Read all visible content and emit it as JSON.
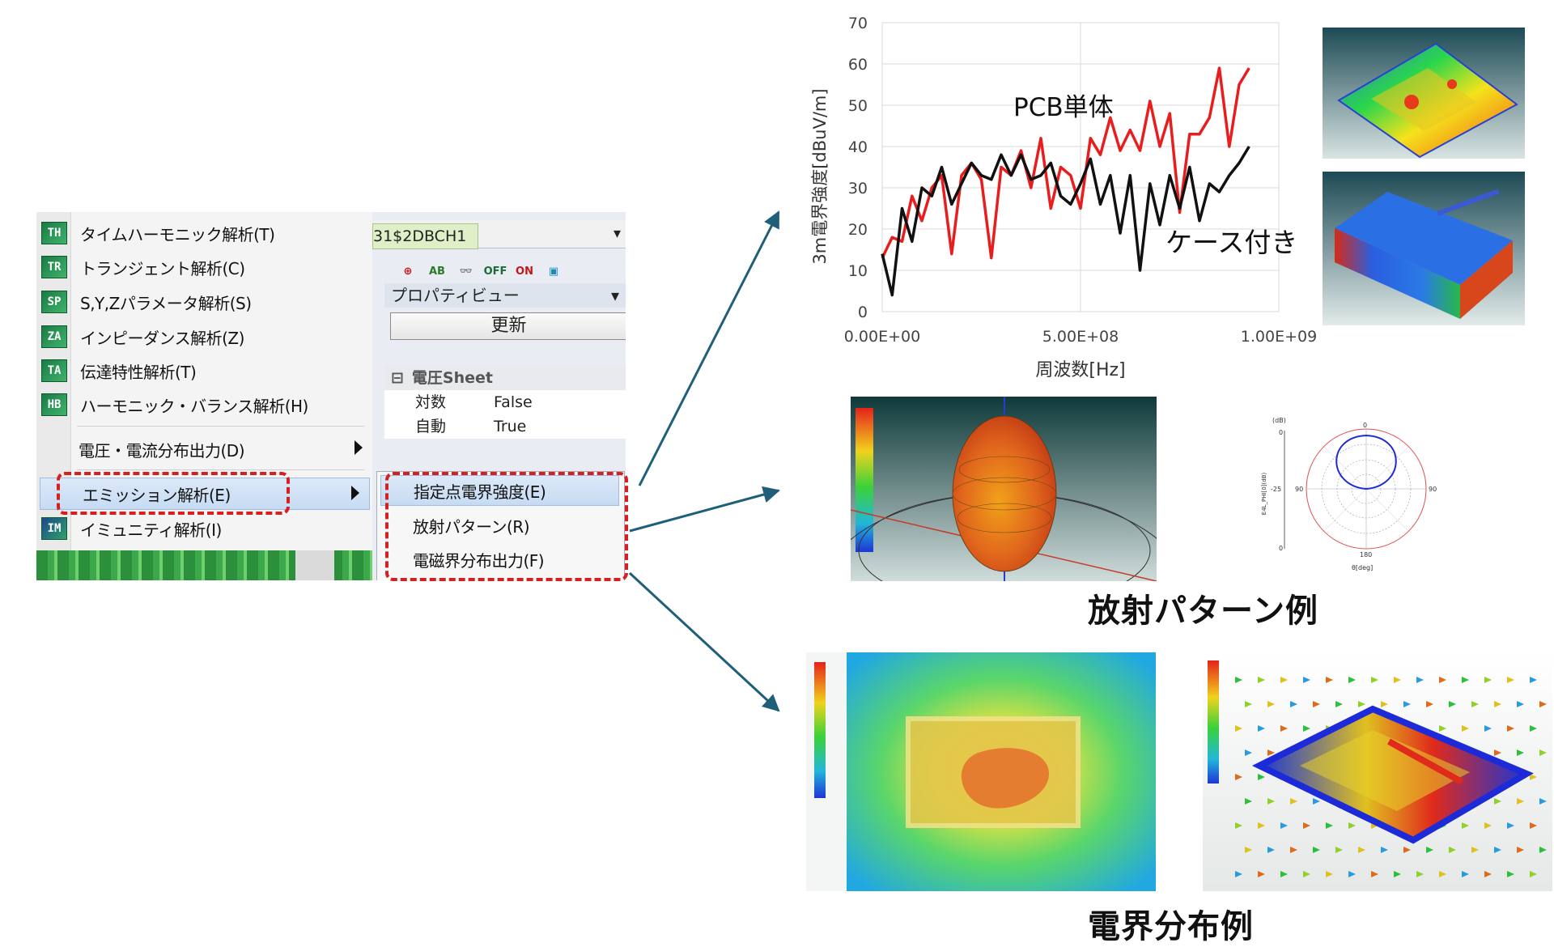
{
  "menu": {
    "items": [
      {
        "icon": "TH",
        "label": "タイムハーモニック解析(T)"
      },
      {
        "icon": "TR",
        "label": "トランジェント解析(C)"
      },
      {
        "icon": "SP",
        "label": "S,Y,Zパラメータ解析(S)"
      },
      {
        "icon": "ZA",
        "label": "インピーダンス解析(Z)"
      },
      {
        "icon": "TA",
        "label": "伝達特性解析(T)"
      },
      {
        "icon": "HB",
        "label": "ハーモニック・バランス解析(H)"
      },
      {
        "icon": "",
        "label": "電圧・電流分布出力(D)"
      },
      {
        "icon": "",
        "label": "エミッション解析(E)"
      },
      {
        "icon": "IM",
        "label": "イミュニティ解析(I)"
      }
    ],
    "submenu": [
      "指定点電界強度(E)",
      "放射パターン(R)",
      "電磁界分布出力(F)"
    ]
  },
  "right_pane": {
    "tab_label": "31$2DBCH1",
    "toolbar": [
      "OFF",
      "ON"
    ],
    "property_view": "プロパティビュー",
    "update_button": "更新",
    "category": "電圧Sheet",
    "properties": [
      {
        "key": "対数",
        "value": "False"
      },
      {
        "key": "自動",
        "value": "True"
      }
    ]
  },
  "colors": {
    "highlight_dash": "#d62020",
    "arrow": "#1f5f7a",
    "series_pcb": "#e81e1e",
    "series_case": "#111111"
  },
  "chart_data": {
    "type": "line",
    "title": "",
    "xlabel": "周波数[Hz]",
    "ylabel": "3m電界強度[dBuV/m]",
    "xlim": [
      0,
      1000000000
    ],
    "ylim": [
      0,
      70
    ],
    "x_ticks": [
      "0.00E+00",
      "5.00E+08",
      "1.00E+09"
    ],
    "y_ticks": [
      0,
      10,
      20,
      30,
      40,
      50,
      60,
      70
    ],
    "grid": true,
    "annotations": [
      "PCB単体",
      "ケース付き"
    ],
    "series": [
      {
        "name": "PCB単体",
        "color": "#e81e1e",
        "x": [
          0,
          25000000,
          50000000,
          75000000,
          100000000,
          125000000,
          150000000,
          175000000,
          200000000,
          225000000,
          250000000,
          275000000,
          300000000,
          325000000,
          350000000,
          375000000,
          400000000,
          425000000,
          450000000,
          475000000,
          500000000,
          525000000,
          550000000,
          575000000,
          600000000,
          625000000,
          650000000,
          675000000,
          700000000,
          725000000,
          750000000,
          775000000,
          800000000,
          825000000,
          850000000,
          875000000,
          900000000,
          925000000
        ],
        "y": [
          13,
          18,
          17,
          28,
          22,
          30,
          33,
          14,
          33,
          36,
          32,
          13,
          35,
          33,
          39,
          30,
          42,
          25,
          35,
          33,
          25,
          42,
          38,
          47,
          39,
          44,
          39,
          51,
          40,
          48,
          24,
          43,
          43,
          47,
          59,
          40,
          55,
          59
        ]
      },
      {
        "name": "ケース付き",
        "color": "#111111",
        "x": [
          0,
          25000000,
          50000000,
          75000000,
          100000000,
          125000000,
          150000000,
          175000000,
          200000000,
          225000000,
          250000000,
          275000000,
          300000000,
          325000000,
          350000000,
          375000000,
          400000000,
          425000000,
          450000000,
          475000000,
          500000000,
          525000000,
          550000000,
          575000000,
          600000000,
          625000000,
          650000000,
          675000000,
          700000000,
          725000000,
          750000000,
          775000000,
          800000000,
          825000000,
          850000000,
          875000000,
          900000000,
          925000000
        ],
        "y": [
          14,
          4,
          25,
          17,
          30,
          28,
          35,
          26,
          31,
          36,
          33,
          32,
          38,
          33,
          38,
          32,
          33,
          36,
          28,
          26,
          31,
          37,
          26,
          33,
          19,
          33,
          10,
          31,
          21,
          33,
          25,
          35,
          22,
          31,
          29,
          33,
          36,
          40
        ]
      }
    ]
  },
  "figures": {
    "radiation_caption": "放射パターン例",
    "field_caption": "電界分布例",
    "polar": {
      "db_label": "(dB)",
      "top_value": "0",
      "mid_value": "-25",
      "bottom_value": "0",
      "angle_0": "0",
      "angle_90": "90",
      "angle_m90": "90",
      "angle_180": "180",
      "radial_label": "E4L_PHI[0](dB)",
      "theta_label": "θ[deg]"
    }
  }
}
